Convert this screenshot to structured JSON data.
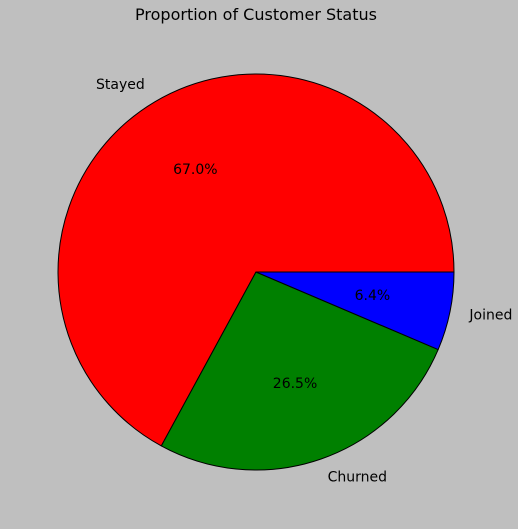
{
  "chart_data": {
    "type": "pie",
    "title": "Proportion of Customer Status",
    "start_angle_deg": 0,
    "direction": "counterclockwise",
    "slices": [
      {
        "label": "Stayed",
        "value": 67.0,
        "pct_label": "67.0%",
        "color": "#ff0000"
      },
      {
        "label": "Churned",
        "value": 26.5,
        "pct_label": "26.5%",
        "color": "#008000"
      },
      {
        "label": "Joined",
        "value": 6.4,
        "pct_label": "6.4%",
        "color": "#0000ff"
      }
    ]
  }
}
